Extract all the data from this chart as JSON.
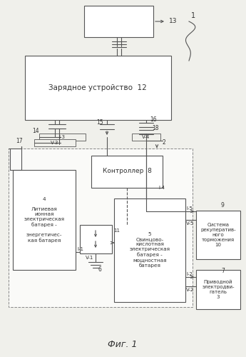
{
  "fig_caption": "Фиг. 1",
  "bg": "#f0f0eb",
  "lc": "#555555",
  "charger_label": "Зарядное устройство  12",
  "controller_label": "Контроллер  8",
  "battery4_label": "4\n\nЛитиевая\nионная\nэлектрическая\nбатарея -\n\nэнергетичес-\nкая батарея",
  "battery5_label": "5\nСвинцово-\nкислотная\nэлектрическая\nбатарея -\nмощностная\nбатарея",
  "regen_label": "Система\nрекуператив-\nного\nторможения\n10",
  "motor_label": "Приводной\nэлектродви-\nгатель\n3"
}
